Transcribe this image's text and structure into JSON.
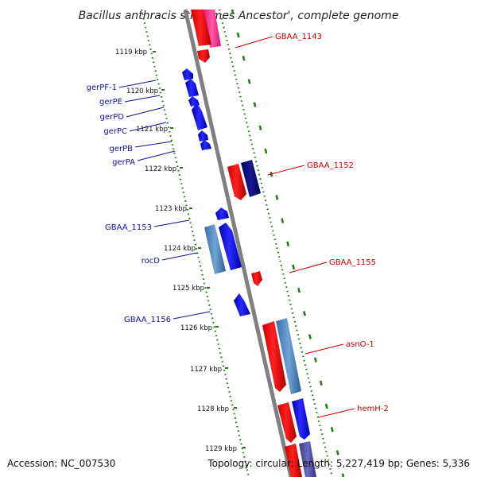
{
  "title": "Bacillus anthracis str. 'Ames Ancestor', complete genome",
  "footer": {
    "accession": "Accession: NC_007530",
    "topology": "Topology: circular; Length: 5,227,419 bp; Genes: 5,336"
  },
  "colors": {
    "forward_gene": "#0000ff",
    "reverse_gene": "#ff0000",
    "forward_label": "#1010a0",
    "reverse_label": "#cc0000",
    "tick": "#2a7a1a",
    "backbone": "#808080"
  },
  "scale_ticks": [
    "1119 kbp",
    "1120 kbp",
    "1121 kbp",
    "1122 kbp",
    "1123 kbp",
    "1124 kbp",
    "1125 kbp",
    "1126 kbp",
    "1127 kbp",
    "1128 kbp",
    "1129 kbp"
  ],
  "forward_labels": [
    "gerPF-1",
    "gerPE",
    "gerPD",
    "gerPC",
    "gerPB",
    "gerPA",
    "GBAA_1153",
    "rocD",
    "GBAA_1156"
  ],
  "reverse_labels": [
    "GBAA_1143",
    "GBAA_1152",
    "GBAA_1155",
    "asnO-1",
    "hemH-2"
  ]
}
